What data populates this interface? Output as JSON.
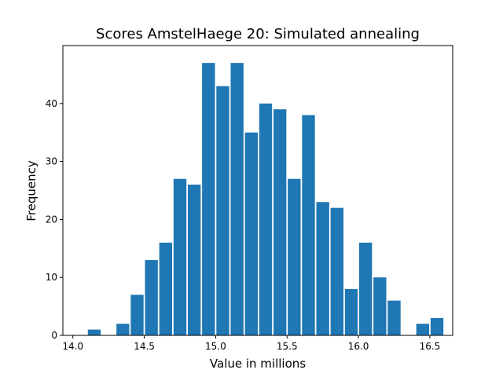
{
  "chart_data": {
    "type": "bar",
    "title": "Scores AmstelHaege 20: Simulated annealing",
    "xlabel": "Value in millions",
    "ylabel": "Frequency",
    "xlim": [
      13.93,
      16.66
    ],
    "ylim": [
      0,
      50
    ],
    "xticks": [
      "14.0",
      "14.5",
      "15.0",
      "15.5",
      "16.0",
      "16.5"
    ],
    "yticks": [
      "0",
      "10",
      "20",
      "30",
      "40"
    ],
    "bar_color": "#1f77b4",
    "bin_width": 0.1,
    "bar_fraction": 0.9,
    "bins": [
      14.15,
      14.35,
      14.45,
      14.55,
      14.65,
      14.75,
      14.85,
      14.95,
      15.05,
      15.15,
      15.25,
      15.35,
      15.45,
      15.55,
      15.65,
      15.75,
      15.85,
      15.95,
      16.05,
      16.15,
      16.25,
      16.45,
      16.55
    ],
    "values": [
      1,
      2,
      7,
      13,
      16,
      27,
      26,
      47,
      43,
      47,
      35,
      40,
      39,
      27,
      38,
      23,
      22,
      8,
      16,
      10,
      6,
      2,
      3
    ],
    "grid": false,
    "legend": "none"
  }
}
